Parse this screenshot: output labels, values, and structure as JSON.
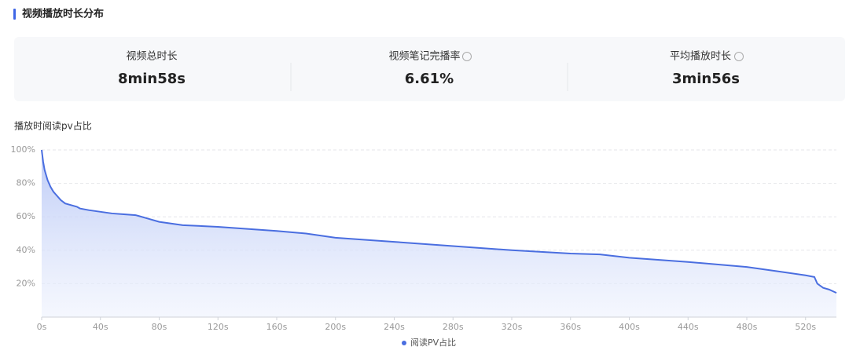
{
  "header": {
    "title": "视频播放时长分布"
  },
  "stats": [
    {
      "label": "视频总时长",
      "value": "8min58s"
    },
    {
      "label": "视频笔记完播率",
      "value": "6.61%"
    },
    {
      "label": "平均播放时长",
      "value": "3min56s"
    }
  ],
  "chart_data": {
    "type": "line",
    "title": "播放时阅读pv占比",
    "x": [
      0,
      1,
      2,
      4,
      6,
      8,
      10,
      13,
      16,
      20,
      24,
      26,
      32,
      40,
      48,
      56,
      64,
      66,
      72,
      80,
      88,
      96,
      120,
      160,
      180,
      200,
      240,
      280,
      320,
      360,
      380,
      400,
      440,
      480,
      500,
      520,
      526,
      528,
      532,
      536,
      541
    ],
    "series": [
      {
        "name": "阅读PV占比",
        "color": "#4a6ee0",
        "values": [
          100,
          93,
          88,
          82,
          78,
          75,
          73,
          70,
          68,
          67,
          66,
          65,
          64,
          63,
          62,
          61.5,
          61,
          60.5,
          59,
          57,
          56,
          55,
          54,
          51.5,
          50,
          47.5,
          45,
          42.5,
          40,
          38,
          37.5,
          35.5,
          33,
          30,
          27.5,
          25,
          24,
          20,
          17.5,
          16.5,
          14.5
        ]
      }
    ],
    "xlim": [
      0,
      541
    ],
    "xticks": [
      {
        "value": 0,
        "label": "0s"
      },
      {
        "value": 40,
        "label": "40s"
      },
      {
        "value": 80,
        "label": "80s"
      },
      {
        "value": 120,
        "label": "120s"
      },
      {
        "value": 160,
        "label": "160s"
      },
      {
        "value": 200,
        "label": "200s"
      },
      {
        "value": 240,
        "label": "240s"
      },
      {
        "value": 280,
        "label": "280s"
      },
      {
        "value": 320,
        "label": "320s"
      },
      {
        "value": 360,
        "label": "360s"
      },
      {
        "value": 400,
        "label": "400s"
      },
      {
        "value": 440,
        "label": "440s"
      },
      {
        "value": 480,
        "label": "480s"
      },
      {
        "value": 520,
        "label": "520s"
      }
    ],
    "ylim": [
      0,
      100
    ],
    "yticks": [
      {
        "value": 20,
        "label": "20%"
      },
      {
        "value": 40,
        "label": "40%"
      },
      {
        "value": 60,
        "label": "60%"
      },
      {
        "value": 80,
        "label": "80%"
      },
      {
        "value": 100,
        "label": "100%"
      }
    ],
    "grid": true,
    "legend": "bottom"
  }
}
